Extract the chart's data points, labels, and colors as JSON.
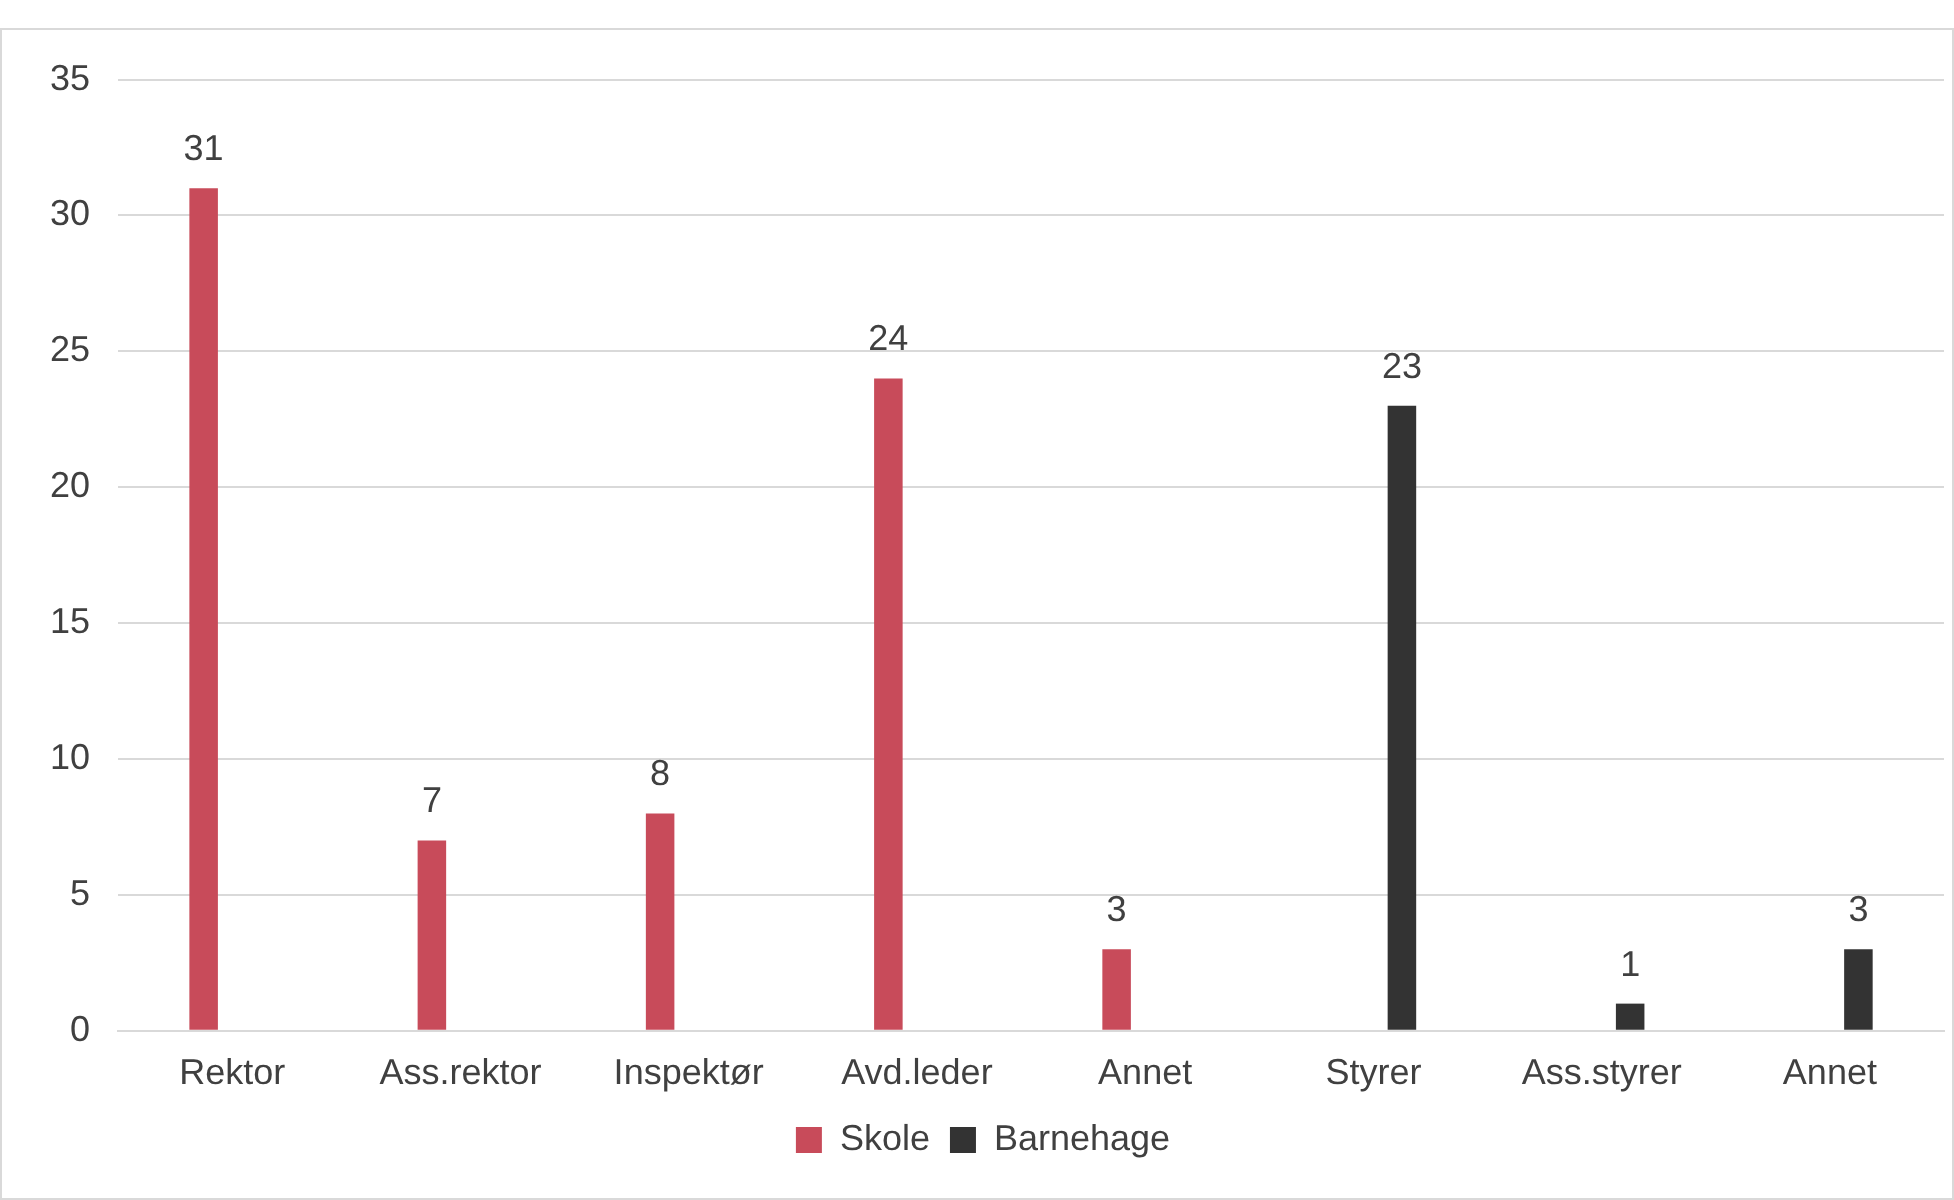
{
  "chart_data": {
    "type": "bar",
    "categories": [
      "Rektor",
      "Ass.rektor",
      "Inspektør",
      "Avd.leder",
      "Annet",
      "Styrer",
      "Ass.styrer",
      "Annet"
    ],
    "series": [
      {
        "name": "Skole",
        "color": "#c84b5a",
        "values": [
          31,
          7,
          8,
          24,
          3,
          null,
          null,
          null
        ]
      },
      {
        "name": "Barnehage",
        "color": "#333333",
        "values": [
          null,
          null,
          null,
          null,
          null,
          23,
          1,
          3
        ]
      }
    ],
    "ylim": [
      0,
      35
    ],
    "yticks": [
      0,
      5,
      10,
      15,
      20,
      25,
      30,
      35
    ],
    "grid": "y",
    "legend": "bottom",
    "data_labels": true
  }
}
